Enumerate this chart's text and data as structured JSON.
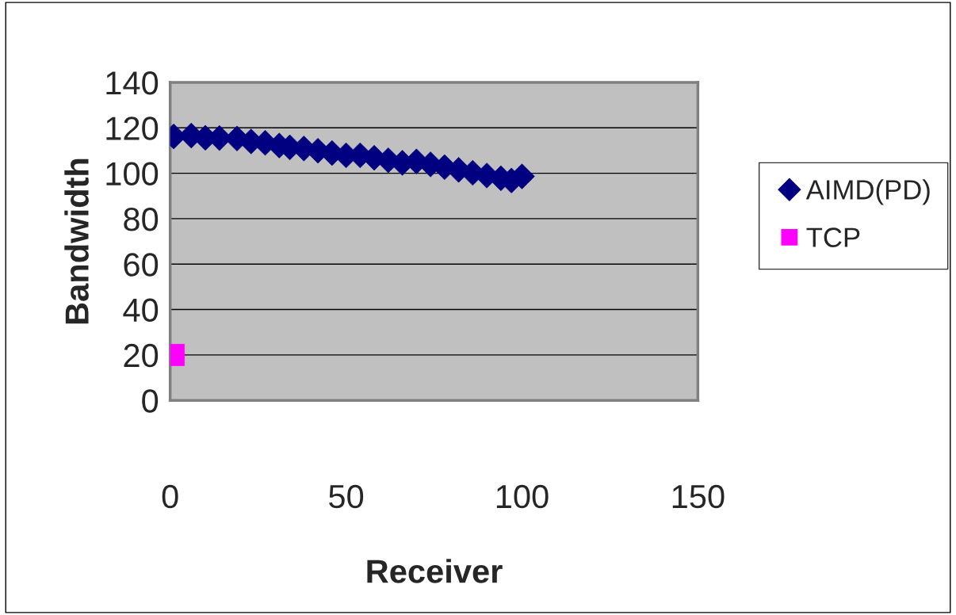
{
  "chart_data": {
    "type": "scatter",
    "xlabel": "Receiver",
    "ylabel": "Bandwidth",
    "xlim": [
      0,
      150
    ],
    "xticks": [
      0,
      50,
      100,
      150
    ],
    "ylim": [
      0,
      140
    ],
    "yticks": [
      0,
      20,
      40,
      60,
      80,
      100,
      120,
      140
    ],
    "grid": "y",
    "legend": "right",
    "series": [
      {
        "name": "AIMD(PD)",
        "color": "#000080",
        "marker": "diamond",
        "x": [
          1,
          6,
          10,
          14,
          19,
          23,
          27,
          31,
          34,
          38,
          42,
          46,
          50,
          54,
          58,
          62,
          66,
          70,
          74,
          78,
          82,
          86,
          90,
          94,
          97,
          100
        ],
        "values": [
          116.2,
          116.6,
          115.6,
          115.5,
          115.3,
          114.0,
          113.4,
          112.2,
          111.4,
          110.9,
          109.9,
          108.9,
          107.9,
          107.9,
          106.8,
          105.7,
          104.6,
          105.2,
          103.9,
          102.7,
          101.5,
          100.2,
          99.0,
          97.8,
          96.8,
          98.6
        ]
      },
      {
        "name": "TCP",
        "color": "#ff00ff",
        "marker": "square",
        "x": [
          1
        ],
        "values": [
          20
        ]
      }
    ]
  }
}
